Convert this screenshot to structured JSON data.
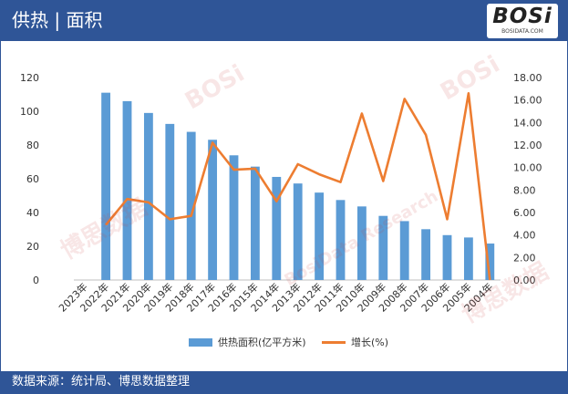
{
  "header": {
    "title": "供热 | 面积"
  },
  "logo": {
    "text": "BOSi",
    "subtext": "BOSIDATA.COM"
  },
  "footer": {
    "source": "数据来源：统计局、博思数据整理"
  },
  "colors": {
    "bar": "#5b9bd5",
    "line": "#ed7d31",
    "header": "#2f5597"
  },
  "chart_data": {
    "type": "bar",
    "title": "供热 | 面积",
    "categories": [
      "2023年",
      "2022年",
      "2021年",
      "2020年",
      "2019年",
      "2018年",
      "2017年",
      "2016年",
      "2015年",
      "2014年",
      "2013年",
      "2012年",
      "2011年",
      "2010年",
      "2009年",
      "2008年",
      "2007年",
      "2006年",
      "2005年",
      "2004年"
    ],
    "series": [
      {
        "name": "供热面积(亿平方米)",
        "type": "bar",
        "axis": "left",
        "values": [
          null,
          111,
          106,
          99,
          92.5,
          87.8,
          83.1,
          73.9,
          67.2,
          61.1,
          57.2,
          51.8,
          47.4,
          43.6,
          38.0,
          34.9,
          30.1,
          26.6,
          25.2,
          21.6
        ]
      },
      {
        "name": "增长(%)",
        "type": "line",
        "axis": "right",
        "values": [
          null,
          4.9,
          7.2,
          6.9,
          5.4,
          5.7,
          12.2,
          9.8,
          9.9,
          7.0,
          10.3,
          9.4,
          8.7,
          14.8,
          8.8,
          16.1,
          12.9,
          5.4,
          16.6,
          0.0
        ]
      }
    ],
    "y_left": {
      "min": 0,
      "max": 120,
      "ticks": [
        "0",
        "20",
        "40",
        "60",
        "80",
        "100",
        "120"
      ]
    },
    "y_right": {
      "min": 0,
      "max": 18,
      "ticks": [
        "0.00",
        "2.00",
        "4.00",
        "6.00",
        "8.00",
        "10.00",
        "12.00",
        "14.00",
        "16.00",
        "18.00"
      ]
    },
    "legend_position": "bottom",
    "grid": false
  },
  "watermarks": [
    "BOSi",
    "博思数据",
    "BosiData Research"
  ]
}
